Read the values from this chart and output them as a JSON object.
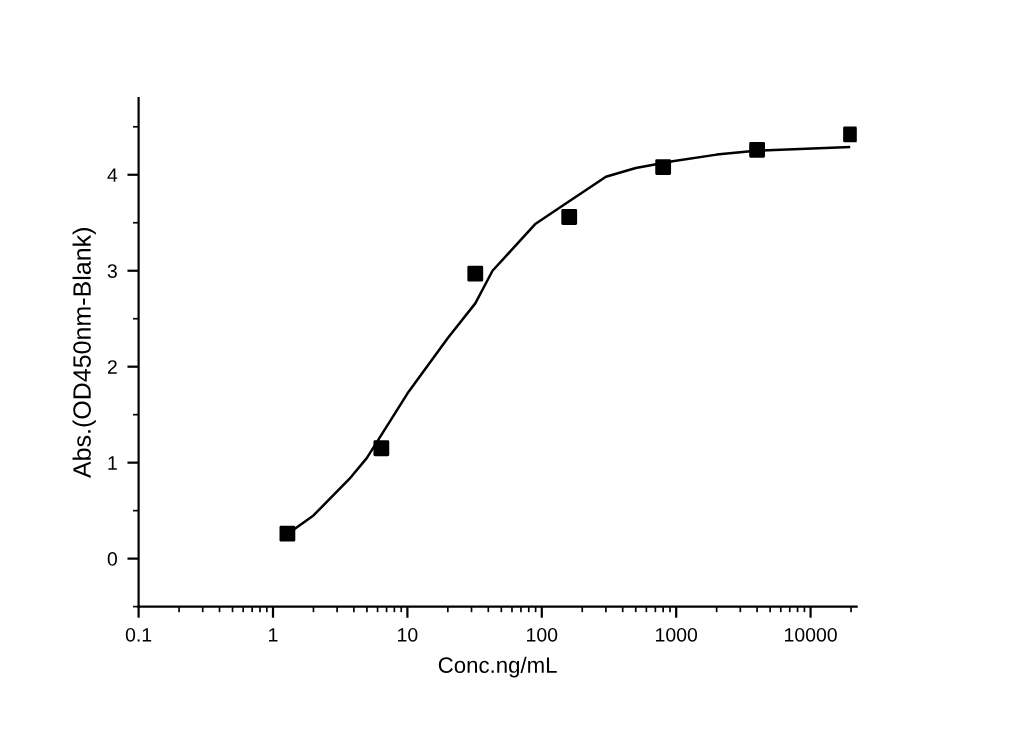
{
  "chart_data": {
    "type": "scatter",
    "xlabel": "Conc.ng/mL",
    "ylabel": "Abs.(OD450nm-Blank)",
    "log": "x",
    "marker": "square",
    "series": [
      {
        "color": "#000000",
        "x": [
          1.28,
          6.4,
          32,
          160,
          800,
          4000,
          20000
        ],
        "values": [
          0.26,
          1.15,
          2.97,
          3.56,
          4.08,
          4.26,
          4.42
        ]
      },
      {
        "type": "line",
        "color": "#000000",
        "marker": "none",
        "x": [
          1.29,
          2,
          3.7,
          5,
          10,
          20,
          32,
          43,
          90,
          151,
          300,
          500,
          940,
          2000,
          3900,
          19300
        ],
        "values": [
          0.26,
          0.45,
          0.83,
          1.05,
          1.72,
          2.3,
          2.66,
          3.0,
          3.49,
          3.7,
          3.98,
          4.07,
          4.14,
          4.21,
          4.25,
          4.29
        ]
      }
    ],
    "xlim": [
      0.1,
      22000
    ],
    "xticks": [
      0.1,
      1,
      10,
      100,
      1000,
      10000
    ],
    "ylim": [
      -0.5,
      4.8
    ],
    "yticks": [
      0,
      1,
      2,
      3,
      4
    ],
    "grid": false
  }
}
